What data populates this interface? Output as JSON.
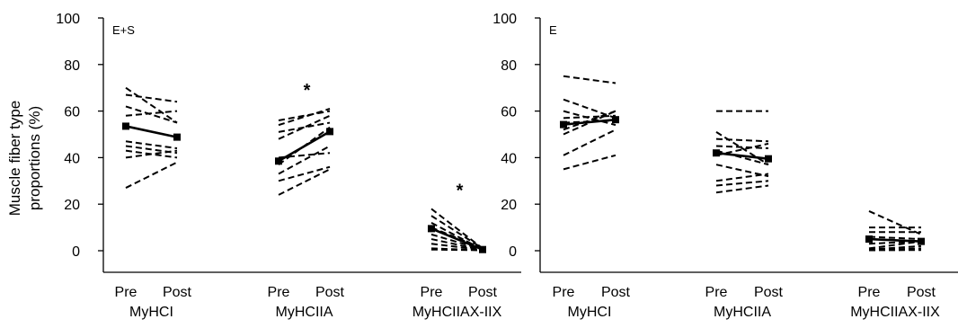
{
  "ylabel_line1": "Muscle fiber type",
  "ylabel_line2": "proportions (%)",
  "chart_data": [
    {
      "type": "line",
      "panel_label": "E+S",
      "ylim": [
        0,
        100
      ],
      "yticks": [
        "0",
        "20",
        "40",
        "60",
        "80",
        "100"
      ],
      "x_tick_labels": [
        "Pre",
        "Post"
      ],
      "groups": [
        {
          "name": "MyHCI",
          "individual_pairs": [
            [
              70,
              55
            ],
            [
              67,
              64
            ],
            [
              62,
              55
            ],
            [
              58,
              60
            ],
            [
              47,
              44
            ],
            [
              45,
              42
            ],
            [
              43,
              40
            ],
            [
              40,
              43
            ],
            [
              27,
              38
            ]
          ],
          "mean": [
            53.5,
            48.8
          ],
          "annotation": ""
        },
        {
          "name": "MyHCIIA",
          "individual_pairs": [
            [
              56,
              60
            ],
            [
              54,
              61
            ],
            [
              51,
              55
            ],
            [
              48,
              58
            ],
            [
              40,
              42
            ],
            [
              37,
              53
            ],
            [
              33,
              45
            ],
            [
              30,
              36
            ],
            [
              24,
              35
            ]
          ],
          "mean": [
            38.5,
            51.2
          ],
          "annotation": "*"
        },
        {
          "name": "MyHCIIAX-IIX",
          "individual_pairs": [
            [
              18,
              1
            ],
            [
              15,
              1
            ],
            [
              12,
              0.5
            ],
            [
              10,
              1
            ],
            [
              7,
              0.5
            ],
            [
              5,
              0.3
            ],
            [
              3,
              0.3
            ],
            [
              1,
              0.2
            ],
            [
              0.5,
              0.2
            ]
          ],
          "mean": [
            9.5,
            0.5
          ],
          "annotation": "*"
        }
      ]
    },
    {
      "type": "line",
      "panel_label": "E",
      "ylim": [
        0,
        100
      ],
      "yticks": [
        "0",
        "20",
        "40",
        "60",
        "80",
        "100"
      ],
      "x_tick_labels": [
        "Pre",
        "Post"
      ],
      "groups": [
        {
          "name": "MyHCI",
          "individual_pairs": [
            [
              75,
              72
            ],
            [
              65,
              57
            ],
            [
              60,
              54
            ],
            [
              57,
              58
            ],
            [
              55,
              56
            ],
            [
              52,
              60
            ],
            [
              50,
              60
            ],
            [
              41,
              52
            ],
            [
              35,
              41
            ]
          ],
          "mean": [
            54.2,
            56.3
          ],
          "annotation": ""
        },
        {
          "name": "MyHCIIA",
          "individual_pairs": [
            [
              60,
              60
            ],
            [
              51,
              37
            ],
            [
              48,
              47
            ],
            [
              45,
              44
            ],
            [
              43,
              37
            ],
            [
              41,
              46
            ],
            [
              37,
              32
            ],
            [
              30,
              33
            ],
            [
              28,
              30
            ],
            [
              25,
              28
            ]
          ],
          "mean": [
            42,
            39.5
          ],
          "annotation": ""
        },
        {
          "name": "MyHCIIAX-IIX",
          "individual_pairs": [
            [
              17,
              7
            ],
            [
              10,
              10
            ],
            [
              8,
              8
            ],
            [
              6,
              5
            ],
            [
              3,
              4
            ],
            [
              1,
              4
            ],
            [
              0.5,
              2
            ],
            [
              0.3,
              1
            ],
            [
              0.2,
              0.3
            ]
          ],
          "mean": [
            5,
            4
          ],
          "annotation": ""
        }
      ]
    }
  ]
}
